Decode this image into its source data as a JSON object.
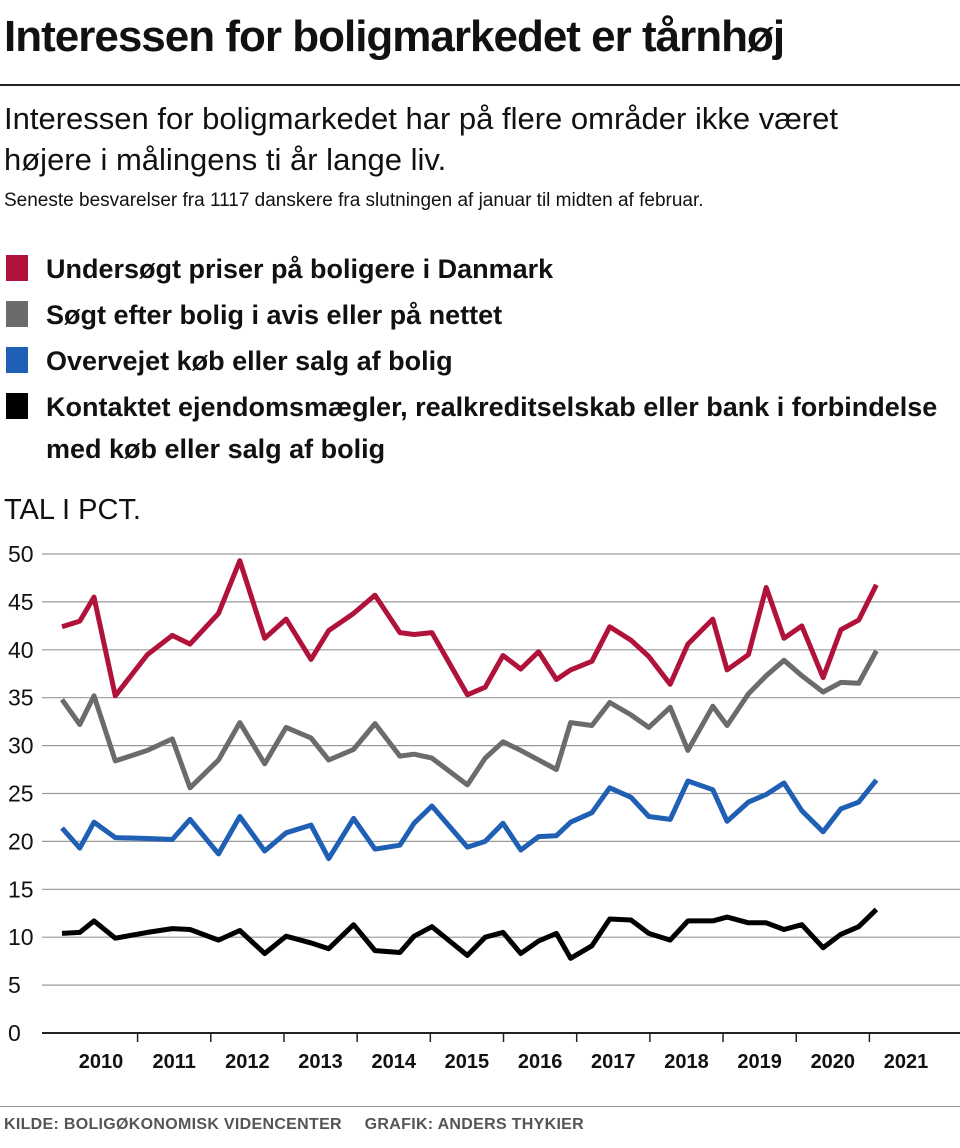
{
  "header": {
    "title": "Interessen for boligmarkedet er tårnhøj",
    "subtitle": "Interessen for boligmarkedet har på flere områder ikke været højere i målingens ti år lange liv.",
    "note": "Seneste besvarelser fra 1117 danskere fra slutningen af januar til midten af februar."
  },
  "legend": [
    {
      "label": "Undersøgt priser på boligere i Danmark",
      "color": "#b0123a"
    },
    {
      "label": "Søgt efter bolig i avis eller på nettet",
      "color": "#6b6b6b"
    },
    {
      "label": "Overvejet køb eller salg af bolig",
      "color": "#1f5fb4"
    },
    {
      "label": "Kontaktet ejendomsmægler, realkreditselskab eller bank i forbindelse med køb eller salg af bolig",
      "color": "#000000"
    }
  ],
  "footer": {
    "source": "KILDE: BOLIGØKONOMISK VIDENCENTER",
    "credit": "GRAFIK: ANDERS THYKIER"
  },
  "chart_data": {
    "type": "line",
    "unit_label": "TAL I PCT.",
    "ylim": [
      0,
      50
    ],
    "yticks": [
      0,
      5,
      10,
      15,
      20,
      25,
      30,
      35,
      40,
      45,
      50
    ],
    "xlim": [
      2009.8,
      2021.3
    ],
    "xticks": [
      "2010",
      "2011",
      "2012",
      "2013",
      "2014",
      "2015",
      "2016",
      "2017",
      "2018",
      "2019",
      "2020",
      "2021"
    ],
    "grid": true,
    "series": [
      {
        "name": "Undersøgt priser på boligere i Danmark",
        "color": "#b0123a",
        "points": [
          [
            2009.8,
            42.4
          ],
          [
            2010.05,
            43.0
          ],
          [
            2010.25,
            45.5
          ],
          [
            2010.55,
            35.2
          ],
          [
            2011.0,
            39.5
          ],
          [
            2011.35,
            41.5
          ],
          [
            2011.6,
            40.6
          ],
          [
            2012.0,
            43.8
          ],
          [
            2012.3,
            49.3
          ],
          [
            2012.65,
            41.2
          ],
          [
            2012.95,
            43.2
          ],
          [
            2013.3,
            39.0
          ],
          [
            2013.55,
            42.0
          ],
          [
            2013.9,
            43.8
          ],
          [
            2014.2,
            45.7
          ],
          [
            2014.55,
            41.8
          ],
          [
            2014.75,
            41.6
          ],
          [
            2015.0,
            41.8
          ],
          [
            2015.5,
            35.3
          ],
          [
            2015.75,
            36.1
          ],
          [
            2016.0,
            39.4
          ],
          [
            2016.25,
            38.0
          ],
          [
            2016.5,
            39.8
          ],
          [
            2016.75,
            36.9
          ],
          [
            2016.95,
            37.9
          ],
          [
            2017.25,
            38.8
          ],
          [
            2017.5,
            42.4
          ],
          [
            2017.8,
            41.0
          ],
          [
            2018.05,
            39.3
          ],
          [
            2018.35,
            36.4
          ],
          [
            2018.6,
            40.6
          ],
          [
            2018.95,
            43.2
          ],
          [
            2019.15,
            37.9
          ],
          [
            2019.45,
            39.5
          ],
          [
            2019.7,
            46.5
          ],
          [
            2019.95,
            41.2
          ],
          [
            2020.2,
            42.5
          ],
          [
            2020.5,
            37.1
          ],
          [
            2020.75,
            42.1
          ],
          [
            2021.0,
            43.1
          ],
          [
            2021.25,
            46.8
          ]
        ]
      },
      {
        "name": "Søgt efter bolig i avis eller på nettet",
        "color": "#6b6b6b",
        "points": [
          [
            2009.8,
            34.8
          ],
          [
            2010.05,
            32.2
          ],
          [
            2010.25,
            35.2
          ],
          [
            2010.55,
            28.4
          ],
          [
            2011.0,
            29.5
          ],
          [
            2011.35,
            30.7
          ],
          [
            2011.6,
            25.6
          ],
          [
            2012.0,
            28.5
          ],
          [
            2012.3,
            32.4
          ],
          [
            2012.65,
            28.1
          ],
          [
            2012.95,
            31.9
          ],
          [
            2013.3,
            30.8
          ],
          [
            2013.55,
            28.5
          ],
          [
            2013.9,
            29.6
          ],
          [
            2014.2,
            32.3
          ],
          [
            2014.55,
            28.9
          ],
          [
            2014.75,
            29.1
          ],
          [
            2015.0,
            28.7
          ],
          [
            2015.5,
            25.9
          ],
          [
            2015.75,
            28.7
          ],
          [
            2016.0,
            30.4
          ],
          [
            2016.25,
            29.5
          ],
          [
            2016.75,
            27.5
          ],
          [
            2016.95,
            32.4
          ],
          [
            2017.25,
            32.1
          ],
          [
            2017.5,
            34.5
          ],
          [
            2017.8,
            33.2
          ],
          [
            2018.05,
            31.9
          ],
          [
            2018.35,
            34.0
          ],
          [
            2018.6,
            29.5
          ],
          [
            2018.95,
            34.1
          ],
          [
            2019.15,
            32.1
          ],
          [
            2019.45,
            35.4
          ],
          [
            2019.7,
            37.3
          ],
          [
            2019.95,
            38.9
          ],
          [
            2020.2,
            37.3
          ],
          [
            2020.5,
            35.6
          ],
          [
            2020.75,
            36.6
          ],
          [
            2021.0,
            36.5
          ],
          [
            2021.25,
            39.9
          ]
        ]
      },
      {
        "name": "Overvejet køb eller salg af bolig",
        "color": "#1f5fb4",
        "points": [
          [
            2009.8,
            21.4
          ],
          [
            2010.05,
            19.3
          ],
          [
            2010.25,
            22.0
          ],
          [
            2010.55,
            20.4
          ],
          [
            2011.0,
            20.3
          ],
          [
            2011.35,
            20.2
          ],
          [
            2011.6,
            22.3
          ],
          [
            2012.0,
            18.7
          ],
          [
            2012.3,
            22.6
          ],
          [
            2012.65,
            19.0
          ],
          [
            2012.95,
            20.9
          ],
          [
            2013.3,
            21.7
          ],
          [
            2013.55,
            18.2
          ],
          [
            2013.9,
            22.4
          ],
          [
            2014.2,
            19.2
          ],
          [
            2014.55,
            19.6
          ],
          [
            2014.75,
            21.9
          ],
          [
            2015.0,
            23.7
          ],
          [
            2015.5,
            19.4
          ],
          [
            2015.75,
            20.0
          ],
          [
            2016.0,
            21.9
          ],
          [
            2016.25,
            19.1
          ],
          [
            2016.5,
            20.5
          ],
          [
            2016.75,
            20.6
          ],
          [
            2016.95,
            22.0
          ],
          [
            2017.25,
            23.0
          ],
          [
            2017.5,
            25.6
          ],
          [
            2017.8,
            24.6
          ],
          [
            2018.05,
            22.6
          ],
          [
            2018.35,
            22.3
          ],
          [
            2018.6,
            26.3
          ],
          [
            2018.95,
            25.4
          ],
          [
            2019.15,
            22.1
          ],
          [
            2019.45,
            24.1
          ],
          [
            2019.7,
            24.9
          ],
          [
            2019.95,
            26.1
          ],
          [
            2020.2,
            23.2
          ],
          [
            2020.5,
            21.0
          ],
          [
            2020.75,
            23.4
          ],
          [
            2021.0,
            24.1
          ],
          [
            2021.25,
            26.4
          ]
        ]
      },
      {
        "name": "Kontaktet ejendomsmægler, realkreditselskab eller bank i forbindelse med køb eller salg af bolig",
        "color": "#000000",
        "points": [
          [
            2009.8,
            10.4
          ],
          [
            2010.05,
            10.5
          ],
          [
            2010.25,
            11.7
          ],
          [
            2010.55,
            9.9
          ],
          [
            2011.0,
            10.5
          ],
          [
            2011.35,
            10.9
          ],
          [
            2011.6,
            10.8
          ],
          [
            2012.0,
            9.7
          ],
          [
            2012.3,
            10.7
          ],
          [
            2012.65,
            8.3
          ],
          [
            2012.95,
            10.1
          ],
          [
            2013.3,
            9.4
          ],
          [
            2013.55,
            8.8
          ],
          [
            2013.9,
            11.3
          ],
          [
            2014.2,
            8.6
          ],
          [
            2014.55,
            8.4
          ],
          [
            2014.75,
            10.1
          ],
          [
            2015.0,
            11.1
          ],
          [
            2015.5,
            8.1
          ],
          [
            2015.75,
            10.0
          ],
          [
            2016.0,
            10.5
          ],
          [
            2016.25,
            8.3
          ],
          [
            2016.5,
            9.6
          ],
          [
            2016.75,
            10.4
          ],
          [
            2016.95,
            7.8
          ],
          [
            2017.25,
            9.1
          ],
          [
            2017.5,
            11.9
          ],
          [
            2017.8,
            11.8
          ],
          [
            2018.05,
            10.4
          ],
          [
            2018.35,
            9.7
          ],
          [
            2018.6,
            11.7
          ],
          [
            2018.95,
            11.7
          ],
          [
            2019.15,
            12.1
          ],
          [
            2019.45,
            11.5
          ],
          [
            2019.7,
            11.5
          ],
          [
            2019.95,
            10.8
          ],
          [
            2020.2,
            11.3
          ],
          [
            2020.5,
            8.9
          ],
          [
            2020.75,
            10.3
          ],
          [
            2021.0,
            11.1
          ],
          [
            2021.25,
            12.9
          ]
        ]
      }
    ]
  }
}
